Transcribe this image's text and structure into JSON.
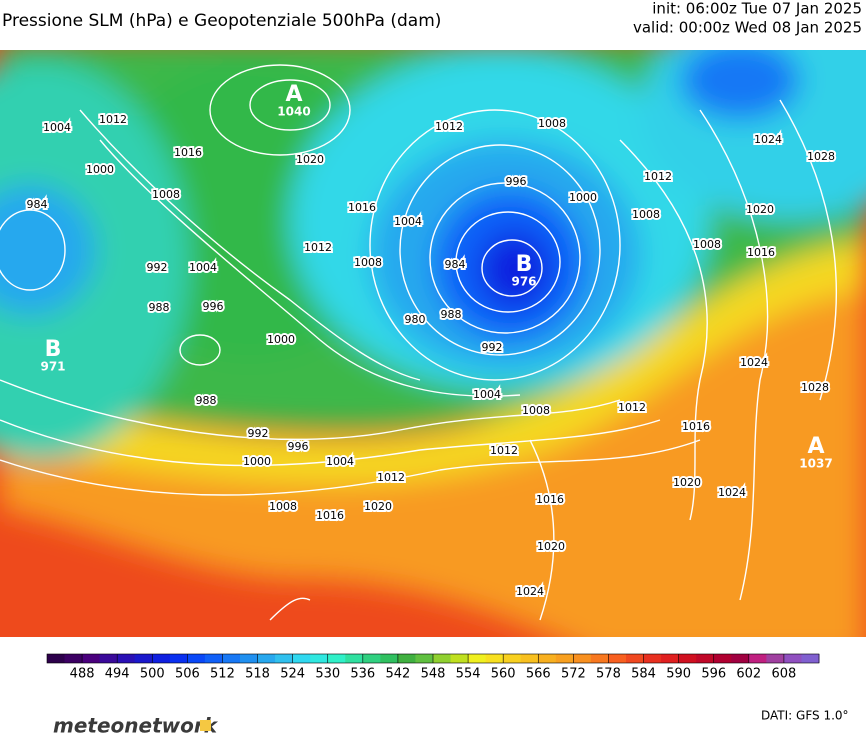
{
  "header": {
    "title": "Pressione SLM (hPa) e Geopotenziale 500hPa (dam)",
    "init": "init: 06:00z Tue 07 Jan 2025",
    "valid": "valid: 00:00z Wed 08 Jan 2025"
  },
  "map": {
    "isobar_labels": [
      1004,
      1012,
      1016,
      1020,
      1000,
      1008,
      984,
      992,
      1004,
      988,
      996,
      1000,
      988,
      992,
      996,
      1000,
      1004,
      1008,
      1016,
      1012,
      1020,
      1012,
      1008,
      996,
      1000,
      1016,
      1012,
      1008,
      1004,
      984,
      988,
      980,
      992,
      1004,
      1008,
      1012,
      1012,
      1024,
      1028,
      1008,
      1020,
      1016,
      1008,
      1024,
      1028,
      1012,
      1016,
      1020,
      1024,
      1016,
      1020,
      1024
    ],
    "centers": [
      {
        "letter": "A",
        "value": 1040
      },
      {
        "letter": "B",
        "value": 976
      },
      {
        "letter": "B",
        "value": 971
      },
      {
        "letter": "A",
        "value": 1037
      }
    ]
  },
  "colorbar": {
    "range": [
      482,
      614
    ],
    "colors": [
      "#2d004b",
      "#3c0063",
      "#4a007d",
      "#3a0a9a",
      "#2a10b5",
      "#1a18cc",
      "#1020e0",
      "#0a30f0",
      "#0a48f8",
      "#1060f8",
      "#1878f5",
      "#2090f0",
      "#28a8ee",
      "#30c0ee",
      "#30d8f0",
      "#30e8e0",
      "#30f0c8",
      "#30e0a0",
      "#30d080",
      "#30c060",
      "#40b040",
      "#60c040",
      "#90d030",
      "#c0e020",
      "#f0f020",
      "#f8e020",
      "#f8d020",
      "#f8c020",
      "#f8b020",
      "#f8a020",
      "#f89020",
      "#f87820",
      "#f86020",
      "#f04820",
      "#e83020",
      "#e02020",
      "#d01020",
      "#c00828",
      "#b00030",
      "#a00040",
      "#c02080",
      "#a040a0",
      "#9050c0",
      "#8060d0"
    ],
    "ticks": [
      488,
      494,
      500,
      506,
      512,
      518,
      524,
      530,
      536,
      542,
      548,
      554,
      560,
      566,
      572,
      578,
      584,
      590,
      596,
      602,
      608
    ]
  },
  "footer": {
    "logo": "meteonetwork",
    "source": "DATI: GFS 1.0°"
  }
}
